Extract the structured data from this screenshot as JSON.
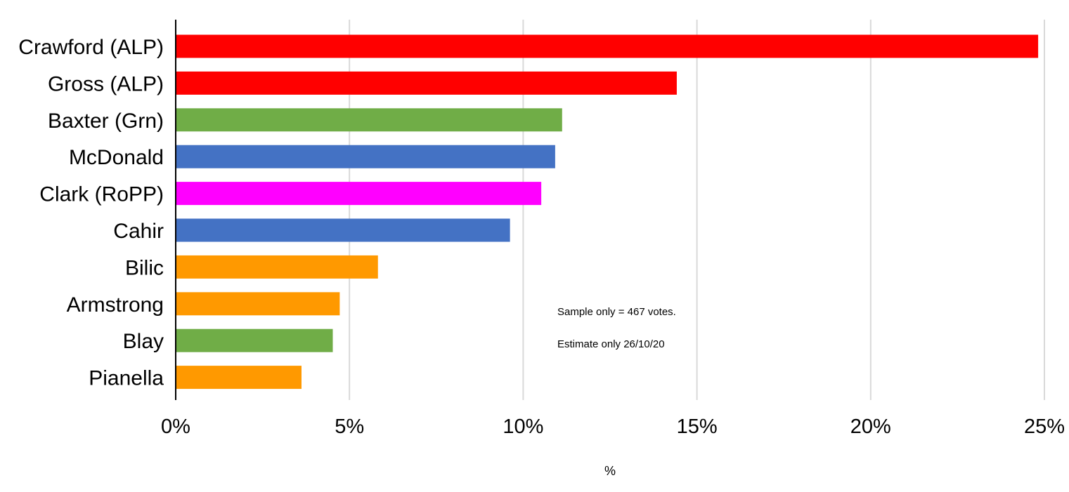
{
  "chart_data": {
    "type": "bar",
    "orientation": "horizontal",
    "categories": [
      "Crawford (ALP)",
      "Gross (ALP)",
      "Baxter (Grn)",
      "McDonald",
      "Clark (RoPP)",
      "Cahir",
      "Bilic",
      "Armstrong",
      "Blay",
      "Pianella"
    ],
    "values": [
      24.8,
      14.4,
      11.1,
      10.9,
      10.5,
      9.6,
      5.8,
      4.7,
      4.5,
      3.6
    ],
    "colors": [
      "#ff0000",
      "#ff0000",
      "#70ad47",
      "#4472c4",
      "#ff00ff",
      "#4472c4",
      "#ff9900",
      "#ff9900",
      "#70ad47",
      "#ff9900"
    ],
    "xlim": [
      0,
      25
    ],
    "xticks": [
      0,
      5,
      10,
      15,
      20,
      25
    ],
    "xtick_labels": [
      "0%",
      "5%",
      "10%",
      "15%",
      "20%",
      "25%"
    ],
    "xlabel": "%",
    "grid": "vertical",
    "legend": "none",
    "annotations": [
      "Sample only = 467 votes.",
      "Estimate only 26/10/20"
    ]
  }
}
